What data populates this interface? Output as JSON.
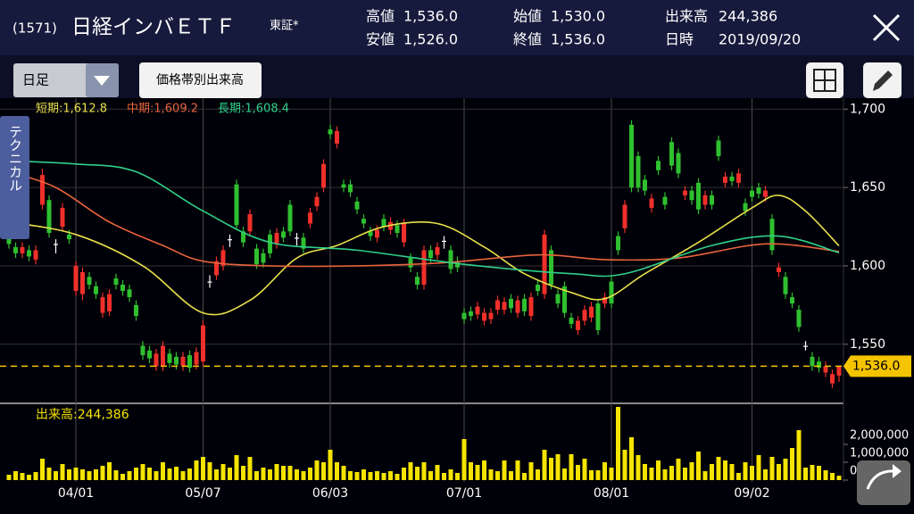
{
  "header": {
    "code": "(1571)",
    "name": "日経インバＥＴＦ",
    "market": "東証*",
    "stats": [
      {
        "label": "高値",
        "value": "1,536.0"
      },
      {
        "label": "安値",
        "value": "1,526.0"
      },
      {
        "label": "始値",
        "value": "1,530.0"
      },
      {
        "label": "終値",
        "value": "1,536.0"
      },
      {
        "label": "出来高",
        "value": "244,386"
      },
      {
        "label": "日時",
        "value": "2019/09/20"
      }
    ]
  },
  "toolbar": {
    "period": "日足",
    "button": "価格帯別出来高",
    "tab": "テクニカル"
  },
  "chart_data": {
    "type": "candlestick",
    "categories": [
      null,
      null,
      null,
      null,
      null,
      null,
      null,
      null,
      null,
      null,
      "04/01",
      null,
      null,
      null,
      null,
      null,
      null,
      null,
      null,
      null,
      null,
      null,
      null,
      null,
      null,
      null,
      null,
      null,
      null,
      "05/07",
      null,
      null,
      null,
      null,
      null,
      null,
      null,
      null,
      null,
      null,
      null,
      null,
      null,
      null,
      null,
      null,
      null,
      null,
      "06/03",
      null,
      null,
      null,
      null,
      null,
      null,
      null,
      null,
      null,
      null,
      null,
      null,
      null,
      null,
      null,
      null,
      null,
      null,
      null,
      "07/01",
      null,
      null,
      null,
      null,
      null,
      null,
      null,
      null,
      null,
      null,
      null,
      null,
      null,
      null,
      null,
      null,
      null,
      null,
      null,
      null,
      null,
      "08/01",
      null,
      null,
      null,
      null,
      null,
      null,
      null,
      null,
      null,
      null,
      null,
      null,
      null,
      null,
      null,
      null,
      null,
      null,
      null,
      null,
      "09/02",
      null,
      null,
      null,
      null,
      null,
      null,
      null,
      null,
      null,
      null,
      null,
      null,
      null
    ],
    "ohlc": [
      [
        1622,
        1625,
        1611,
        1614
      ],
      [
        1612,
        1615,
        1605,
        1608
      ],
      [
        1608,
        1615,
        1605,
        1612
      ],
      [
        1610,
        1613,
        1603,
        1606
      ],
      [
        1604,
        1613,
        1601,
        1610
      ],
      [
        1639,
        1662,
        1636,
        1658
      ],
      [
        1642,
        1645,
        1618,
        1621
      ],
      [
        1614,
        1617,
        1608,
        1614
      ],
      [
        1625,
        1640,
        1622,
        1637
      ],
      [
        1620,
        1623,
        1614,
        1617
      ],
      [
        1584,
        1603,
        1581,
        1600
      ],
      [
        1582,
        1599,
        1578,
        1596
      ],
      [
        1593,
        1596,
        1585,
        1588
      ],
      [
        1587,
        1590,
        1579,
        1582
      ],
      [
        1570,
        1583,
        1567,
        1580
      ],
      [
        1571,
        1585,
        1568,
        1582
      ],
      [
        1592,
        1595,
        1585,
        1588
      ],
      [
        1588,
        1591,
        1581,
        1584
      ],
      [
        1585,
        1588,
        1577,
        1580
      ],
      [
        1575,
        1578,
        1565,
        1568
      ],
      [
        1549,
        1552,
        1540,
        1543
      ],
      [
        1546,
        1549,
        1538,
        1541
      ],
      [
        1536,
        1547,
        1533,
        1544
      ],
      [
        1536,
        1552,
        1533,
        1549
      ],
      [
        1544,
        1547,
        1535,
        1538
      ],
      [
        1542,
        1545,
        1534,
        1537
      ],
      [
        1536,
        1545,
        1533,
        1542
      ],
      [
        1543,
        1546,
        1532,
        1535
      ],
      [
        1537,
        1548,
        1534,
        1545
      ],
      [
        1539,
        1565,
        1536,
        1562
      ],
      [
        1590,
        1594,
        1586,
        1590
      ],
      [
        1594,
        1606,
        1591,
        1603
      ],
      [
        1600,
        1613,
        1597,
        1610
      ],
      [
        1617,
        1620,
        1612,
        1617
      ],
      [
        1652,
        1655,
        1623,
        1626
      ],
      [
        1622,
        1625,
        1612,
        1615
      ],
      [
        1622,
        1636,
        1619,
        1633
      ],
      [
        1611,
        1614,
        1598,
        1601
      ],
      [
        1608,
        1611,
        1599,
        1602
      ],
      [
        1620,
        1623,
        1605,
        1608
      ],
      [
        1614,
        1624,
        1611,
        1621
      ],
      [
        1622,
        1625,
        1615,
        1618
      ],
      [
        1639,
        1642,
        1619,
        1622
      ],
      [
        1618,
        1621,
        1613,
        1618
      ],
      [
        1618,
        1621,
        1608,
        1611
      ],
      [
        1627,
        1637,
        1624,
        1634
      ],
      [
        1638,
        1647,
        1635,
        1644
      ],
      [
        1650,
        1668,
        1647,
        1665
      ],
      [
        1687,
        1690,
        1681,
        1684
      ],
      [
        1678,
        1689,
        1675,
        1686
      ],
      [
        1652,
        1655,
        1647,
        1650
      ],
      [
        1652,
        1655,
        1644,
        1647
      ],
      [
        1641,
        1644,
        1633,
        1636
      ],
      [
        1630,
        1633,
        1624,
        1627
      ],
      [
        1622,
        1625,
        1616,
        1619
      ],
      [
        1618,
        1626,
        1615,
        1623
      ],
      [
        1630,
        1633,
        1622,
        1625
      ],
      [
        1623,
        1631,
        1620,
        1628
      ],
      [
        1626,
        1629,
        1618,
        1621
      ],
      [
        1615,
        1630,
        1612,
        1627
      ],
      [
        1605,
        1608,
        1596,
        1599
      ],
      [
        1593,
        1596,
        1585,
        1588
      ],
      [
        1588,
        1613,
        1585,
        1610
      ],
      [
        1610,
        1613,
        1602,
        1605
      ],
      [
        1607,
        1615,
        1604,
        1612
      ],
      [
        1616,
        1619,
        1611,
        1616
      ],
      [
        1610,
        1613,
        1595,
        1598
      ],
      [
        1603,
        1606,
        1596,
        1599
      ],
      [
        1570,
        1573,
        1563,
        1566
      ],
      [
        1571,
        1574,
        1565,
        1568
      ],
      [
        1569,
        1577,
        1566,
        1574
      ],
      [
        1565,
        1573,
        1562,
        1570
      ],
      [
        1566,
        1573,
        1563,
        1570
      ],
      [
        1572,
        1581,
        1569,
        1578
      ],
      [
        1572,
        1580,
        1569,
        1577
      ],
      [
        1579,
        1582,
        1570,
        1573
      ],
      [
        1570,
        1581,
        1567,
        1578
      ],
      [
        1579,
        1582,
        1568,
        1571
      ],
      [
        1568,
        1583,
        1565,
        1580
      ],
      [
        1588,
        1591,
        1581,
        1584
      ],
      [
        1582,
        1623,
        1579,
        1620
      ],
      [
        1610,
        1613,
        1585,
        1588
      ],
      [
        1582,
        1585,
        1573,
        1576
      ],
      [
        1587,
        1590,
        1567,
        1570
      ],
      [
        1567,
        1570,
        1560,
        1563
      ],
      [
        1559,
        1568,
        1556,
        1565
      ],
      [
        1565,
        1575,
        1562,
        1572
      ],
      [
        1567,
        1577,
        1564,
        1574
      ],
      [
        1576,
        1579,
        1556,
        1559
      ],
      [
        1576,
        1583,
        1573,
        1580
      ],
      [
        1590,
        1593,
        1573,
        1576
      ],
      [
        1619,
        1622,
        1607,
        1610
      ],
      [
        1624,
        1642,
        1621,
        1639
      ],
      [
        1690,
        1693,
        1647,
        1650
      ],
      [
        1670,
        1673,
        1647,
        1650
      ],
      [
        1655,
        1658,
        1645,
        1648
      ],
      [
        1637,
        1646,
        1634,
        1643
      ],
      [
        1667,
        1670,
        1658,
        1661
      ],
      [
        1644,
        1647,
        1636,
        1639
      ],
      [
        1679,
        1682,
        1661,
        1664
      ],
      [
        1672,
        1675,
        1656,
        1659
      ],
      [
        1645,
        1651,
        1642,
        1648
      ],
      [
        1648,
        1651,
        1639,
        1642
      ],
      [
        1653,
        1656,
        1633,
        1636
      ],
      [
        1639,
        1648,
        1636,
        1645
      ],
      [
        1645,
        1648,
        1636,
        1639
      ],
      [
        1680,
        1683,
        1667,
        1670
      ],
      [
        1653,
        1660,
        1650,
        1657
      ],
      [
        1657,
        1660,
        1651,
        1654
      ],
      [
        1653,
        1662,
        1650,
        1659
      ],
      [
        1640,
        1643,
        1632,
        1635
      ],
      [
        1648,
        1651,
        1641,
        1644
      ],
      [
        1650,
        1653,
        1643,
        1646
      ],
      [
        1644,
        1651,
        1641,
        1648
      ],
      [
        1630,
        1633,
        1607,
        1610
      ],
      [
        1596,
        1602,
        1593,
        1599
      ],
      [
        1593,
        1596,
        1579,
        1582
      ],
      [
        1580,
        1583,
        1573,
        1576
      ],
      [
        1572,
        1575,
        1558,
        1561
      ],
      [
        1549,
        1552,
        1546,
        1549
      ],
      [
        1542,
        1545,
        1533,
        1536
      ],
      [
        1539,
        1542,
        1532,
        1535
      ],
      [
        1532,
        1539,
        1529,
        1536
      ],
      [
        1525,
        1534,
        1522,
        1531
      ],
      [
        1530,
        1536,
        1526,
        1536
      ]
    ],
    "up_color": "#f0302a",
    "down_color": "#2fc02f",
    "doji_color": "#ffffff",
    "ylim": [
      1514,
      1707
    ],
    "yticks": [
      {
        "value": 1700,
        "label": "1,700"
      },
      {
        "value": 1650,
        "label": "1,650"
      },
      {
        "value": 1600,
        "label": "1,600"
      },
      {
        "value": 1550,
        "label": "1,550"
      }
    ],
    "grid": true,
    "last_price": {
      "value": 1536,
      "label": "1,536.0",
      "color": "#f5c400"
    },
    "moving_averages": [
      {
        "name": "短期:1,612.8",
        "color": "#e8e04a",
        "x": [
          0,
          10,
          20,
          29,
          36,
          43,
          49,
          56,
          64,
          71,
          77,
          84,
          89,
          95,
          103,
          111,
          115,
          119,
          124
        ],
        "values": [
          1628,
          1620,
          1600,
          1570,
          1578,
          1605,
          1613,
          1625,
          1627,
          1612,
          1595,
          1583,
          1579,
          1595,
          1615,
          1637,
          1645,
          1635,
          1612.8
        ]
      },
      {
        "name": "中期:1,609.2",
        "color": "#e8643c",
        "x": [
          0,
          7,
          15,
          23,
          29,
          39,
          52,
          65,
          79,
          89,
          100,
          113,
          124
        ],
        "values": [
          1660,
          1650,
          1628,
          1613,
          1603,
          1600,
          1600,
          1602,
          1607,
          1604,
          1605,
          1614,
          1609.2
        ]
      },
      {
        "name": "長期:1,608.4",
        "color": "#2fd08a",
        "x": [
          0,
          10,
          19,
          29,
          39,
          52,
          68,
          84,
          92,
          105,
          115,
          124
        ],
        "values": [
          1667,
          1665,
          1660,
          1635,
          1615,
          1610,
          1601,
          1595,
          1595,
          1613,
          1619,
          1608.4
        ]
      }
    ],
    "volume": {
      "label": "出来高:244,386",
      "color": "#f5e400",
      "ylim": [
        0,
        4200000
      ],
      "yticks": [
        0,
        {
          "value": 1000000,
          "label": "1,000,000"
        },
        {
          "value": 2000000,
          "label": "2,000,000"
        }
      ],
      "values": [
        300000,
        500000,
        400000,
        300000,
        450000,
        1200000,
        700000,
        500000,
        900000,
        600000,
        700000,
        600000,
        500000,
        600000,
        800000,
        1000000,
        550000,
        350000,
        500000,
        700000,
        900000,
        700000,
        500000,
        1000000,
        650000,
        750000,
        500000,
        650000,
        1100000,
        1300000,
        1000000,
        600000,
        900000,
        700000,
        1400000,
        800000,
        1300000,
        500000,
        700000,
        600000,
        900000,
        800000,
        800000,
        600000,
        500000,
        700000,
        1100000,
        1000000,
        1700000,
        1000000,
        800000,
        500000,
        450000,
        600000,
        450000,
        500000,
        400000,
        500000,
        350000,
        700000,
        1000000,
        750000,
        1000000,
        500000,
        850000,
        400000,
        600000,
        400000,
        2300000,
        1000000,
        850000,
        1100000,
        600000,
        500000,
        1100000,
        500000,
        1100000,
        400000,
        1000000,
        600000,
        1700000,
        1250000,
        1450000,
        650000,
        1450000,
        850000,
        1200000,
        550000,
        550000,
        1000000,
        700000,
        4100000,
        1700000,
        2400000,
        1400000,
        900000,
        700000,
        1100000,
        600000,
        800000,
        1200000,
        700000,
        1000000,
        1600000,
        500000,
        900000,
        1300000,
        1100000,
        900000,
        400000,
        1000000,
        800000,
        1400000,
        600000,
        1300000,
        900000,
        1200000,
        1800000,
        2800000,
        700000,
        850000,
        800000,
        550000,
        400000,
        244386
      ]
    }
  }
}
